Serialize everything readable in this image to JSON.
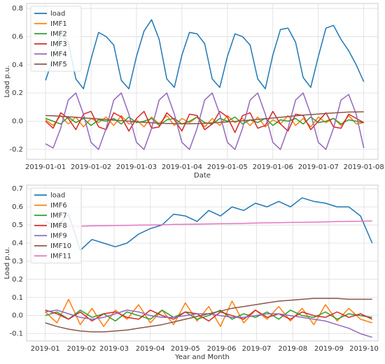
{
  "chart_data": [
    {
      "type": "line",
      "xlabel": "Date",
      "ylabel": "Load p.u.",
      "grid": true,
      "legend": "upper left",
      "xlim": [
        "2018-12-31T14:00",
        "2019-01-08T07:30"
      ],
      "xticks": [
        "2019-01-01",
        "2019-01-02",
        "2019-01-03",
        "2019-01-04",
        "2019-01-05",
        "2019-01-06",
        "2019-01-07",
        "2019-01-08"
      ],
      "ylim": [
        -0.27,
        0.835
      ],
      "yticks": [
        -0.2,
        {
          "value": 0,
          "label": "0.0"
        },
        0.2,
        0.4,
        0.6,
        0.8
      ],
      "x": [
        "2019-01-01T00:00",
        "2019-01-01T04:00",
        "2019-01-01T08:00",
        "2019-01-01T12:00",
        "2019-01-01T16:00",
        "2019-01-01T20:00",
        "2019-01-02T00:00",
        "2019-01-02T04:00",
        "2019-01-02T08:00",
        "2019-01-02T12:00",
        "2019-01-02T16:00",
        "2019-01-02T20:00",
        "2019-01-03T00:00",
        "2019-01-03T04:00",
        "2019-01-03T08:00",
        "2019-01-03T12:00",
        "2019-01-03T16:00",
        "2019-01-03T20:00",
        "2019-01-04T00:00",
        "2019-01-04T04:00",
        "2019-01-04T08:00",
        "2019-01-04T12:00",
        "2019-01-04T16:00",
        "2019-01-04T20:00",
        "2019-01-05T00:00",
        "2019-01-05T04:00",
        "2019-01-05T08:00",
        "2019-01-05T12:00",
        "2019-01-05T16:00",
        "2019-01-05T20:00",
        "2019-01-06T00:00",
        "2019-01-06T04:00",
        "2019-01-06T08:00",
        "2019-01-06T12:00",
        "2019-01-06T16:00",
        "2019-01-06T20:00",
        "2019-01-07T00:00",
        "2019-01-07T04:00",
        "2019-01-07T08:00",
        "2019-01-07T12:00",
        "2019-01-07T16:00",
        "2019-01-07T20:00",
        "2019-01-08T00:00"
      ],
      "series": [
        {
          "name": "load",
          "color": "#1f77b4",
          "values": [
            0.29,
            0.45,
            0.62,
            0.56,
            0.3,
            0.23,
            0.44,
            0.63,
            0.6,
            0.54,
            0.29,
            0.23,
            0.46,
            0.64,
            0.72,
            0.58,
            0.3,
            0.24,
            0.47,
            0.63,
            0.62,
            0.55,
            0.3,
            0.24,
            0.46,
            0.62,
            0.6,
            0.54,
            0.3,
            0.23,
            0.47,
            0.65,
            0.66,
            0.56,
            0.31,
            0.24,
            0.46,
            0.66,
            0.68,
            0.58,
            0.5,
            0.4,
            0.28
          ]
        },
        {
          "name": "IMF1",
          "color": "#ff7f0e",
          "values": [
            0.01,
            -0.03,
            0.04,
            -0.02,
            0.03,
            -0.04,
            0.02,
            -0.01,
            0.03,
            -0.03,
            0.04,
            -0.02,
            0.01,
            -0.04,
            0.03,
            -0.02,
            0.04,
            -0.03,
            0.02,
            -0.01,
            0.03,
            -0.04,
            0.02,
            -0.03,
            0.04,
            -0.01,
            0.02,
            -0.03,
            0.03,
            -0.04,
            0.01,
            -0.02,
            0.04,
            -0.03,
            0.02,
            -0.04,
            0.03,
            -0.01,
            0.02,
            -0.03,
            0.04,
            -0.02,
            -0.01
          ]
        },
        {
          "name": "IMF2",
          "color": "#2ca02c",
          "values": [
            0.02,
            0.0,
            -0.02,
            0.03,
            -0.01,
            0.02,
            -0.03,
            0.01,
            0.0,
            0.02,
            -0.02,
            0.03,
            -0.01,
            0.0,
            0.02,
            -0.03,
            0.01,
            0.02,
            -0.02,
            0.0,
            0.03,
            -0.01,
            -0.02,
            0.02,
            0.0,
            0.03,
            -0.02,
            0.01,
            -0.01,
            0.02,
            -0.03,
            0.01,
            0.0,
            0.02,
            -0.02,
            0.03,
            -0.01,
            0.0,
            0.02,
            -0.02,
            0.01,
            0.0,
            -0.01
          ]
        },
        {
          "name": "IMF3",
          "color": "#d62728",
          "values": [
            0.0,
            -0.05,
            0.06,
            0.02,
            -0.06,
            0.05,
            0.07,
            -0.04,
            -0.06,
            0.06,
            0.03,
            -0.07,
            0.02,
            0.07,
            -0.05,
            -0.04,
            0.06,
            0.01,
            -0.07,
            0.05,
            0.04,
            -0.06,
            -0.02,
            0.07,
            0.03,
            -0.08,
            0.04,
            0.06,
            -0.05,
            -0.03,
            0.07,
            -0.02,
            -0.07,
            0.05,
            0.04,
            -0.06,
            0.0,
            0.06,
            -0.04,
            -0.05,
            0.05,
            0.02,
            -0.01
          ]
        },
        {
          "name": "IMF4",
          "color": "#9467bd",
          "values": [
            -0.16,
            -0.19,
            -0.05,
            0.15,
            0.2,
            0.05,
            -0.15,
            -0.2,
            -0.05,
            0.15,
            0.2,
            0.05,
            -0.15,
            -0.2,
            -0.05,
            0.15,
            0.2,
            0.05,
            -0.15,
            -0.2,
            -0.05,
            0.15,
            0.2,
            0.05,
            -0.15,
            -0.2,
            -0.05,
            0.15,
            0.2,
            0.05,
            -0.15,
            -0.2,
            -0.05,
            0.15,
            0.2,
            0.05,
            -0.15,
            -0.2,
            -0.05,
            0.15,
            0.19,
            0.05,
            -0.19
          ]
        },
        {
          "name": "IMF5",
          "color": "#8c564b",
          "values": [
            0.04,
            0.038,
            0.035,
            0.032,
            0.028,
            0.024,
            0.02,
            0.016,
            0.012,
            0.008,
            0.004,
            0.0,
            -0.004,
            -0.008,
            -0.011,
            -0.014,
            -0.016,
            -0.017,
            -0.018,
            -0.018,
            -0.017,
            -0.015,
            -0.012,
            -0.009,
            -0.005,
            -0.001,
            0.003,
            0.008,
            0.013,
            0.018,
            0.023,
            0.028,
            0.033,
            0.038,
            0.043,
            0.047,
            0.051,
            0.055,
            0.059,
            0.062,
            0.065,
            0.066,
            0.067
          ]
        }
      ]
    },
    {
      "type": "line",
      "xlabel": "Year and Month",
      "ylabel": "Load p.u.",
      "grid": true,
      "legend": "upper left",
      "xlim": [
        "2018-12-16",
        "2019-10-13"
      ],
      "xticks": [
        "2019-01",
        "2019-02",
        "2019-03",
        "2019-04",
        "2019-05",
        "2019-06",
        "2019-07",
        "2019-08",
        "2019-09",
        "2019-10"
      ],
      "ylim": [
        -0.14,
        0.72
      ],
      "yticks": [
        -0.1,
        {
          "value": 0,
          "label": "0.0"
        },
        0.1,
        0.2,
        0.3,
        0.4,
        0.5,
        0.6,
        0.7
      ],
      "x": [
        "2019-01-01",
        "2019-01-11",
        "2019-01-21",
        "2019-01-31",
        "2019-02-10",
        "2019-02-20",
        "2019-03-02",
        "2019-03-12",
        "2019-03-22",
        "2019-04-01",
        "2019-04-11",
        "2019-04-21",
        "2019-05-01",
        "2019-05-11",
        "2019-05-21",
        "2019-05-31",
        "2019-06-10",
        "2019-06-20",
        "2019-06-30",
        "2019-07-10",
        "2019-07-20",
        "2019-07-30",
        "2019-08-09",
        "2019-08-19",
        "2019-08-29",
        "2019-09-08",
        "2019-09-18",
        "2019-09-28",
        "2019-10-08"
      ],
      "series": [
        {
          "name": "load",
          "color": "#1f77b4",
          "values": [
            0.52,
            0.49,
            0.56,
            0.36,
            0.42,
            0.4,
            0.38,
            0.4,
            0.45,
            0.48,
            0.5,
            0.56,
            0.55,
            0.52,
            0.58,
            0.55,
            0.6,
            0.58,
            0.62,
            0.6,
            0.63,
            0.6,
            0.65,
            0.63,
            0.62,
            0.6,
            0.6,
            0.55,
            0.4
          ]
        },
        {
          "name": "IMF6",
          "color": "#ff7f0e",
          "values": [
            0.02,
            -0.04,
            0.09,
            -0.05,
            0.04,
            -0.06,
            0.03,
            -0.02,
            0.06,
            -0.04,
            0.03,
            -0.05,
            0.07,
            -0.03,
            0.05,
            -0.06,
            0.08,
            -0.04,
            0.03,
            -0.02,
            0.05,
            -0.03,
            0.04,
            -0.05,
            0.06,
            -0.03,
            0.04,
            -0.02,
            -0.04
          ]
        },
        {
          "name": "IMF7",
          "color": "#2ca02c",
          "values": [
            0.0,
            0.02,
            -0.02,
            0.03,
            -0.01,
            0.01,
            -0.03,
            0.02,
            0.0,
            -0.02,
            0.03,
            -0.01,
            0.02,
            -0.02,
            0.0,
            0.03,
            -0.02,
            0.01,
            -0.01,
            0.02,
            -0.02,
            0.03,
            0.0,
            -0.01,
            0.02,
            -0.02,
            0.01,
            0.0,
            -0.01
          ]
        },
        {
          "name": "IMF8",
          "color": "#d62728",
          "values": [
            0.03,
            0.01,
            -0.02,
            0.02,
            -0.03,
            0.01,
            0.02,
            -0.01,
            -0.02,
            0.03,
            0.0,
            -0.02,
            0.02,
            0.01,
            -0.03,
            0.02,
            0.0,
            -0.02,
            0.03,
            -0.01,
            0.01,
            -0.02,
            0.02,
            0.0,
            -0.01,
            0.02,
            -0.01,
            0.01,
            -0.02
          ]
        },
        {
          "name": "IMF9",
          "color": "#9467bd",
          "values": [
            0.02,
            0.03,
            0.01,
            -0.01,
            -0.02,
            -0.01,
            0.01,
            0.03,
            0.02,
            0.0,
            -0.01,
            -0.01,
            0.0,
            0.01,
            0.01,
            0.0,
            -0.01,
            -0.01,
            0.0,
            0.01,
            0.01,
            0.0,
            -0.01,
            -0.02,
            -0.03,
            -0.05,
            -0.07,
            -0.1,
            -0.12
          ]
        },
        {
          "name": "IMF10",
          "color": "#8c564b",
          "values": [
            -0.04,
            -0.06,
            -0.075,
            -0.085,
            -0.09,
            -0.09,
            -0.085,
            -0.08,
            -0.07,
            -0.06,
            -0.05,
            -0.035,
            -0.02,
            -0.005,
            0.01,
            0.025,
            0.04,
            0.05,
            0.06,
            0.07,
            0.08,
            0.085,
            0.09,
            0.095,
            0.095,
            0.095,
            0.09,
            0.09,
            0.09
          ]
        },
        {
          "name": "IMF11",
          "color": "#e377c2",
          "values": [
            0.49,
            0.491,
            0.492,
            0.493,
            0.495,
            0.496,
            0.497,
            0.498,
            0.499,
            0.5,
            0.501,
            0.503,
            0.504,
            0.505,
            0.506,
            0.507,
            0.508,
            0.509,
            0.511,
            0.512,
            0.513,
            0.514,
            0.515,
            0.516,
            0.517,
            0.519,
            0.52,
            0.521,
            0.522
          ]
        }
      ]
    }
  ]
}
